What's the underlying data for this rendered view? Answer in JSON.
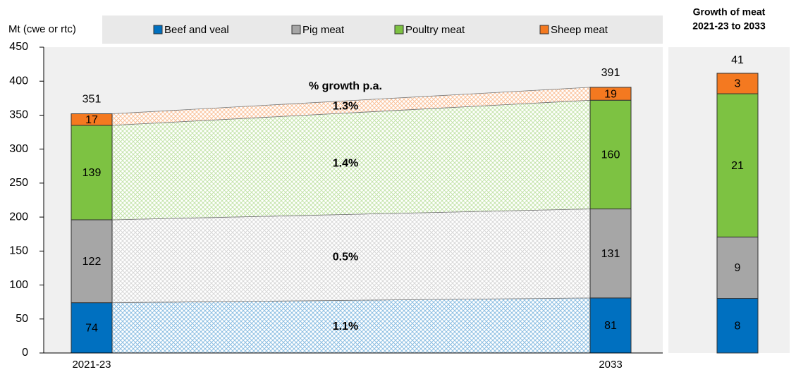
{
  "chart_data": {
    "type": "bar",
    "stacked": true,
    "ylabel": "Mt (cwe or rtc)",
    "categories": [
      "2021-23",
      "2033"
    ],
    "series": [
      {
        "name": "Beef and veal",
        "color": "#0070c0",
        "values": [
          74,
          81
        ],
        "growth": "1.1%"
      },
      {
        "name": "Pig meat",
        "color": "#a6a6a6",
        "values": [
          122,
          131
        ],
        "growth": "0.5%"
      },
      {
        "name": "Poultry meat",
        "color": "#7dc242",
        "values": [
          139,
          160
        ],
        "growth": "1.4%"
      },
      {
        "name": "Sheep meat",
        "color": "#f47920",
        "values": [
          17,
          19
        ],
        "growth": "1.3%"
      }
    ],
    "totals": [
      351,
      391
    ],
    "growth_title": "% growth p.a.",
    "ylim": [
      0,
      450
    ],
    "yticks": [
      0,
      50,
      100,
      150,
      200,
      250,
      300,
      350,
      400,
      450
    ],
    "panel": {
      "title": [
        "Growth of meat",
        "2021-23 to 2033"
      ],
      "values": [
        8,
        9,
        21,
        3
      ],
      "total": 41
    }
  }
}
